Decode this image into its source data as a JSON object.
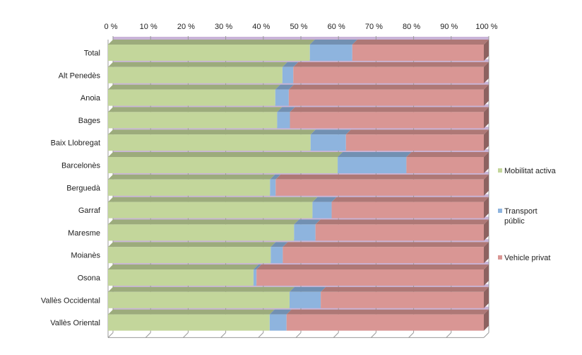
{
  "chart_data": {
    "type": "bar",
    "orientation": "horizontal",
    "stacked": "percent",
    "title": "",
    "xlabel": "",
    "ylabel": "",
    "xlim": [
      0,
      100
    ],
    "x_ticks": [
      "0 %",
      "10 %",
      "20 %",
      "30 %",
      "40 %",
      "50 %",
      "60 %",
      "70 %",
      "80 %",
      "90 %",
      "100 %"
    ],
    "categories": [
      "Total",
      "Alt Penedès",
      "Anoia",
      "Bages",
      "Baix Llobregat",
      "Barcelonès",
      "Berguedà",
      "Garraf",
      "Maresme",
      "Moianès",
      "Osona",
      "Vallès Occidental",
      "Vallès Oriental"
    ],
    "series": [
      {
        "name": "Mobilitat activa",
        "color": "#c3d69b",
        "values": [
          53.7,
          46.4,
          44.5,
          45.0,
          53.9,
          61.1,
          43.1,
          54.4,
          49.5,
          43.3,
          38.7,
          48.3,
          43.0
        ]
      },
      {
        "name": "Transport públic",
        "color": "#8eb4de",
        "values": [
          11.3,
          2.9,
          3.6,
          3.4,
          9.4,
          18.3,
          1.5,
          5.1,
          5.7,
          3.2,
          0.8,
          8.3,
          4.5
        ]
      },
      {
        "name": "Vehicle privat",
        "color": "#d99694",
        "values": [
          35.0,
          50.7,
          51.9,
          51.6,
          36.7,
          20.6,
          55.4,
          40.5,
          44.8,
          53.5,
          60.5,
          43.4,
          52.5
        ]
      }
    ],
    "legend": {
      "position": "right",
      "entries": [
        "Mobilitat activa",
        "Transport públic",
        "Vehicle privat"
      ]
    },
    "grid": true
  }
}
